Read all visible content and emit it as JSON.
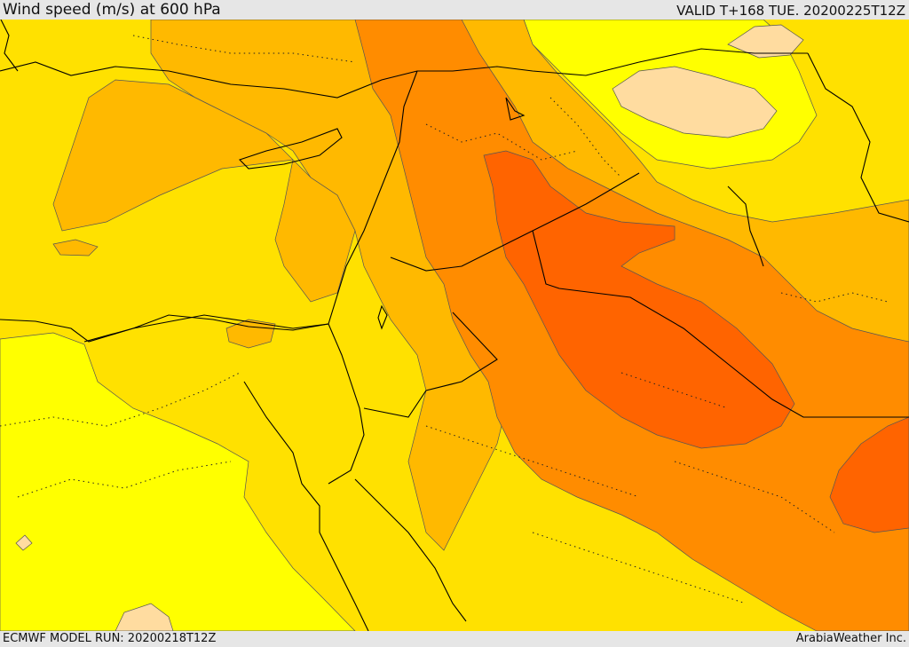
{
  "header": {
    "title": "Wind speed (m/s) at 600 hPa",
    "valid": "VALID T+168 TUE. 20200225T12Z"
  },
  "footer": {
    "model_run": "ECMWF MODEL RUN: 20200218T12Z",
    "credit": "ArabiaWeather Inc."
  },
  "palette": {
    "lightest": "#ffff00",
    "light": "#ffe100",
    "medium": "#ffb900",
    "strong": "#ff8c00",
    "stronger": "#ff6400",
    "pale_peach": "#ffdca0",
    "border_line": "#000000"
  }
}
